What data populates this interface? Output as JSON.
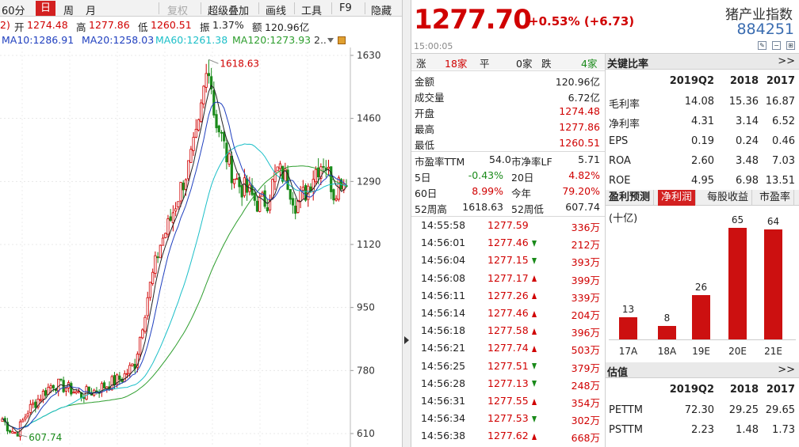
{
  "toolbar": {
    "items": [
      "60分",
      "日",
      "周",
      "月",
      "复权",
      "超级叠加",
      "画线",
      "工具",
      "F9",
      "隐藏"
    ]
  },
  "ohl": {
    "prefix": "2)",
    "open_l": "开",
    "open": "1274.48",
    "high_l": "高",
    "high": "1277.86",
    "low_l": "低",
    "low": "1260.51",
    "amp_l": "振",
    "amp": "1.37%",
    "amt_l": "额",
    "amt": "120.96亿"
  },
  "ma": {
    "ma10": "MA10:1286.91",
    "ma20": "MA20:1258.03",
    "ma60": "MA60:1261.38",
    "ma120": "MA120:1273.93",
    "more": "2.."
  },
  "colors": {
    "up": "#d00000",
    "down": "#1a8a1a",
    "ma10": "#222222",
    "ma20": "#1f3fbf",
    "ma60": "#1bbfc8",
    "ma120": "#2e9e2e",
    "bar": "#cc1010"
  },
  "chart_data": {
    "type": "candlestick",
    "y_ticks": [
      "1630",
      "1460",
      "1290",
      "1120",
      "950",
      "780",
      "610"
    ],
    "ylim": [
      610,
      1630
    ],
    "max_label": "1618.63",
    "min_label": "607.74",
    "max_value": 1618.63,
    "min_value": 607.74
  },
  "quote": {
    "price": "1277.70",
    "change": "+0.53% (+6.73)",
    "name": "猪产业指数",
    "code": "884251",
    "time": "15:00:05"
  },
  "breadth": {
    "up_l": "涨",
    "up": "18家",
    "flat_l": "平",
    "flat": "0家",
    "down_l": "跌",
    "down": "4家"
  },
  "stats": [
    {
      "label": "金额",
      "value": "120.96亿",
      "color": "#222"
    },
    {
      "label": "成交量",
      "value": "6.72亿",
      "color": "#222"
    },
    {
      "label": "开盘",
      "value": "1274.48",
      "color": "#d00000"
    },
    {
      "label": "最高",
      "value": "1277.86",
      "color": "#d00000"
    },
    {
      "label": "最低",
      "value": "1260.51",
      "color": "#d00000"
    }
  ],
  "valuation": {
    "pe_l": "市盈率TTM",
    "pe": "54.0",
    "pb_l": "市净率LF",
    "pb": "5.71"
  },
  "perf": [
    {
      "l1": "5日",
      "v1": "-0.43%",
      "c1": "#1a8a1a",
      "l2": "20日",
      "v2": "4.82%",
      "c2": "#d00000"
    },
    {
      "l1": "60日",
      "v1": "8.99%",
      "c1": "#d00000",
      "l2": "今年",
      "v2": "79.20%",
      "c2": "#d00000"
    },
    {
      "l1": "52周高",
      "v1": "1618.63",
      "c1": "#222",
      "l2": "52周低",
      "v2": "607.74",
      "c2": "#222"
    }
  ],
  "ticks": [
    {
      "t": "14:55:58",
      "p": "1277.59",
      "d": "",
      "v": "336万"
    },
    {
      "t": "14:56:01",
      "p": "1277.46",
      "d": "dn",
      "v": "212万"
    },
    {
      "t": "14:56:04",
      "p": "1277.15",
      "d": "dn",
      "v": "393万"
    },
    {
      "t": "14:56:08",
      "p": "1277.17",
      "d": "up",
      "v": "399万"
    },
    {
      "t": "14:56:11",
      "p": "1277.26",
      "d": "up",
      "v": "339万"
    },
    {
      "t": "14:56:14",
      "p": "1277.46",
      "d": "up",
      "v": "204万"
    },
    {
      "t": "14:56:18",
      "p": "1277.58",
      "d": "up",
      "v": "396万"
    },
    {
      "t": "14:56:21",
      "p": "1277.74",
      "d": "up",
      "v": "503万"
    },
    {
      "t": "14:56:25",
      "p": "1277.51",
      "d": "dn",
      "v": "379万"
    },
    {
      "t": "14:56:28",
      "p": "1277.13",
      "d": "dn",
      "v": "248万"
    },
    {
      "t": "14:56:31",
      "p": "1277.55",
      "d": "up",
      "v": "354万"
    },
    {
      "t": "14:56:34",
      "p": "1277.53",
      "d": "dn",
      "v": "302万"
    },
    {
      "t": "14:56:38",
      "p": "1277.62",
      "d": "up",
      "v": "668万"
    }
  ],
  "ratios": {
    "title": "关键比率",
    "more": ">>",
    "cols": [
      "2019Q2",
      "2018",
      "2017"
    ],
    "rows": [
      {
        "name": "毛利率",
        "v": [
          "14.08",
          "15.36",
          "16.87"
        ]
      },
      {
        "name": "净利率",
        "v": [
          "4.31",
          "3.14",
          "6.52"
        ]
      },
      {
        "name": "EPS",
        "v": [
          "0.19",
          "0.24",
          "0.46"
        ]
      },
      {
        "name": "ROA",
        "v": [
          "2.60",
          "3.48",
          "7.03"
        ]
      },
      {
        "name": "ROE",
        "v": [
          "4.95",
          "6.98",
          "13.51"
        ]
      }
    ]
  },
  "forecast": {
    "tabs": [
      "盈利预测",
      "净利润",
      "每股收益",
      "市盈率"
    ],
    "unit": "(十亿)",
    "bar_data": {
      "type": "bar",
      "categories": [
        "17A",
        "18A",
        "19E",
        "20E",
        "21E"
      ],
      "values": [
        13,
        8,
        26,
        65,
        64
      ],
      "ylim": [
        0,
        70
      ]
    }
  },
  "valuation2": {
    "title": "估值",
    "more": ">>",
    "cols": [
      "2019Q2",
      "2018",
      "2017"
    ],
    "rows": [
      {
        "name": "PETTM",
        "v": [
          "72.30",
          "29.25",
          "29.65"
        ]
      },
      {
        "name": "PSTTM",
        "v": [
          "2.23",
          "1.48",
          "1.73"
        ]
      }
    ]
  }
}
